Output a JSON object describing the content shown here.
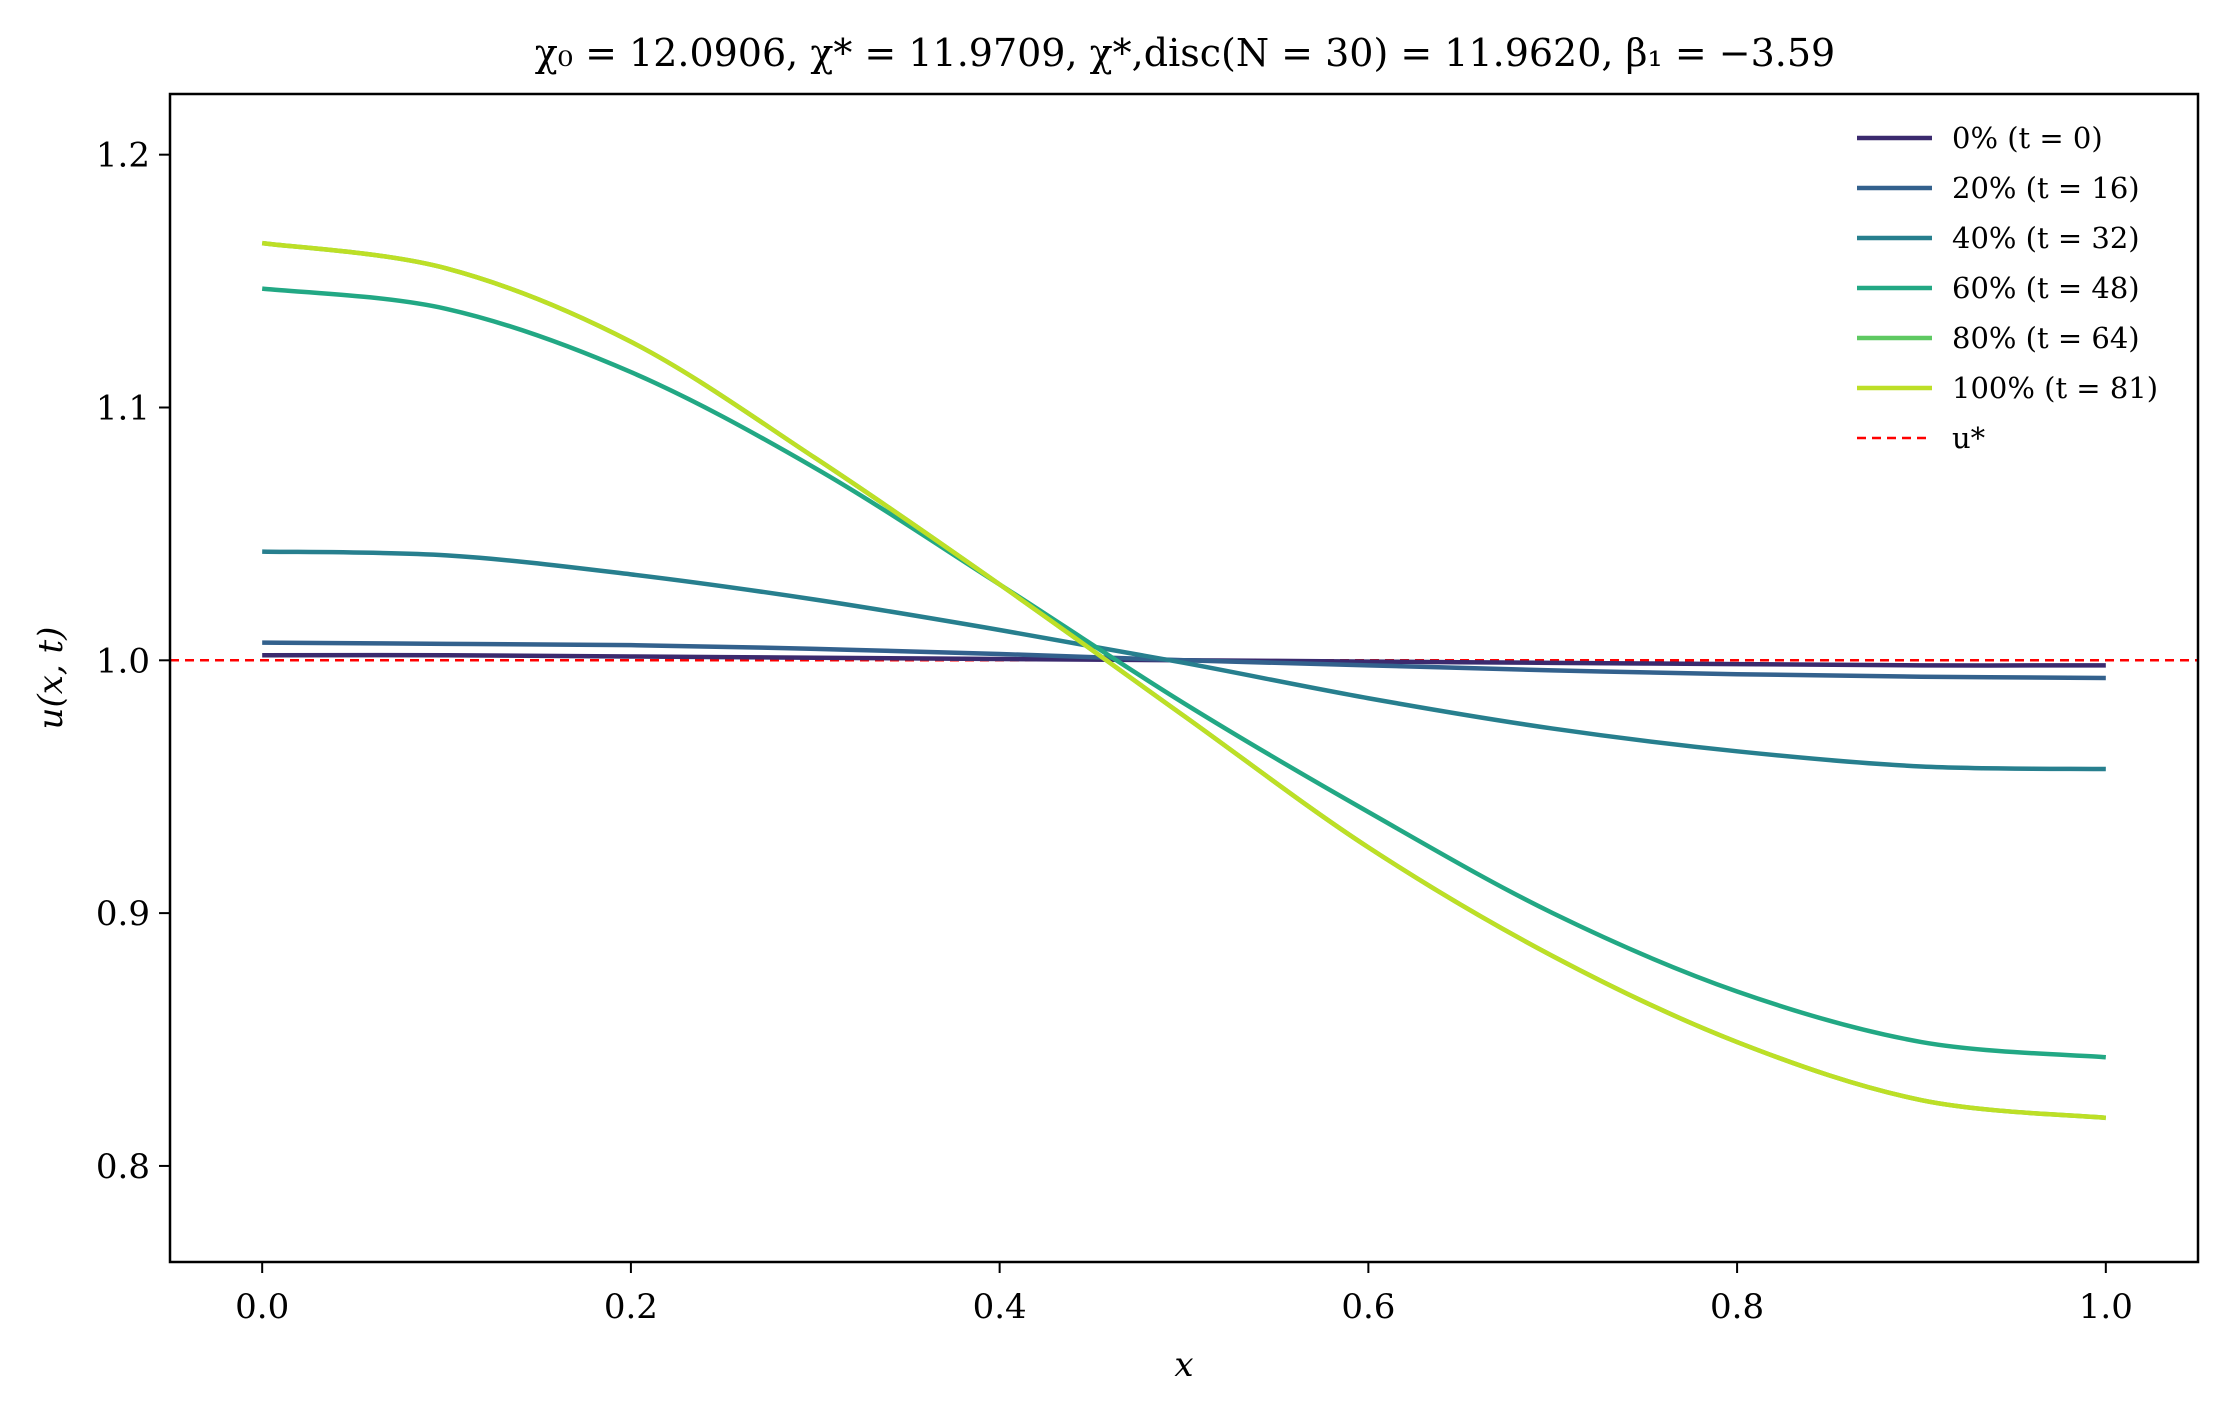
{
  "chart_data": {
    "type": "line",
    "title": "χ₀ = 12.0906,  χ* = 11.9709,  χ*,disc(N = 30) = 11.9620,  β₁ = −3.59",
    "xlabel": "x",
    "ylabel": "u(x, t)",
    "xlim": [
      -0.05,
      1.05
    ],
    "ylim": [
      0.762,
      1.224
    ],
    "x_ticks": [
      "0.0",
      "0.2",
      "0.4",
      "0.6",
      "0.8",
      "1.0"
    ],
    "y_ticks": [
      "0.8",
      "0.9",
      "1.0",
      "1.1",
      "1.2"
    ],
    "grid": false,
    "legend_position": "top-right",
    "reference_line": {
      "name": "u*",
      "y": 1.0,
      "color": "#ff0000",
      "style": "dashed"
    },
    "x": [
      0.0,
      0.1,
      0.2,
      0.3,
      0.4,
      0.5,
      0.6,
      0.7,
      0.8,
      0.9,
      1.0
    ],
    "series": [
      {
        "name": "0% (t = 0)",
        "color": "#3b2a6e",
        "values": [
          1.002,
          1.002,
          1.0015,
          1.001,
          1.0005,
          1.0,
          0.9995,
          0.999,
          0.9985,
          0.998,
          0.998
        ]
      },
      {
        "name": "20% (t = 16)",
        "color": "#33618d",
        "values": [
          1.007,
          1.0065,
          1.006,
          1.0045,
          1.0025,
          1.0,
          0.998,
          0.996,
          0.9945,
          0.9935,
          0.993
        ]
      },
      {
        "name": "40% (t = 32)",
        "color": "#277f8e",
        "values": [
          1.043,
          1.0415,
          1.034,
          1.024,
          1.012,
          0.999,
          0.985,
          0.973,
          0.964,
          0.958,
          0.957
        ]
      },
      {
        "name": "60% (t = 48)",
        "color": "#22a884",
        "values": [
          1.147,
          1.139,
          1.114,
          1.076,
          1.03,
          0.983,
          0.94,
          0.9,
          0.869,
          0.849,
          0.843
        ]
      },
      {
        "name": "80% (t = 64)",
        "color": "#5ec962",
        "values": [
          1.165,
          1.155,
          1.126,
          1.08,
          1.03,
          0.978,
          0.926,
          0.883,
          0.849,
          0.826,
          0.819
        ]
      },
      {
        "name": "100% (t = 81)",
        "color": "#bddf26",
        "values": [
          1.165,
          1.155,
          1.126,
          1.08,
          1.03,
          0.978,
          0.926,
          0.883,
          0.849,
          0.826,
          0.819
        ]
      }
    ]
  }
}
